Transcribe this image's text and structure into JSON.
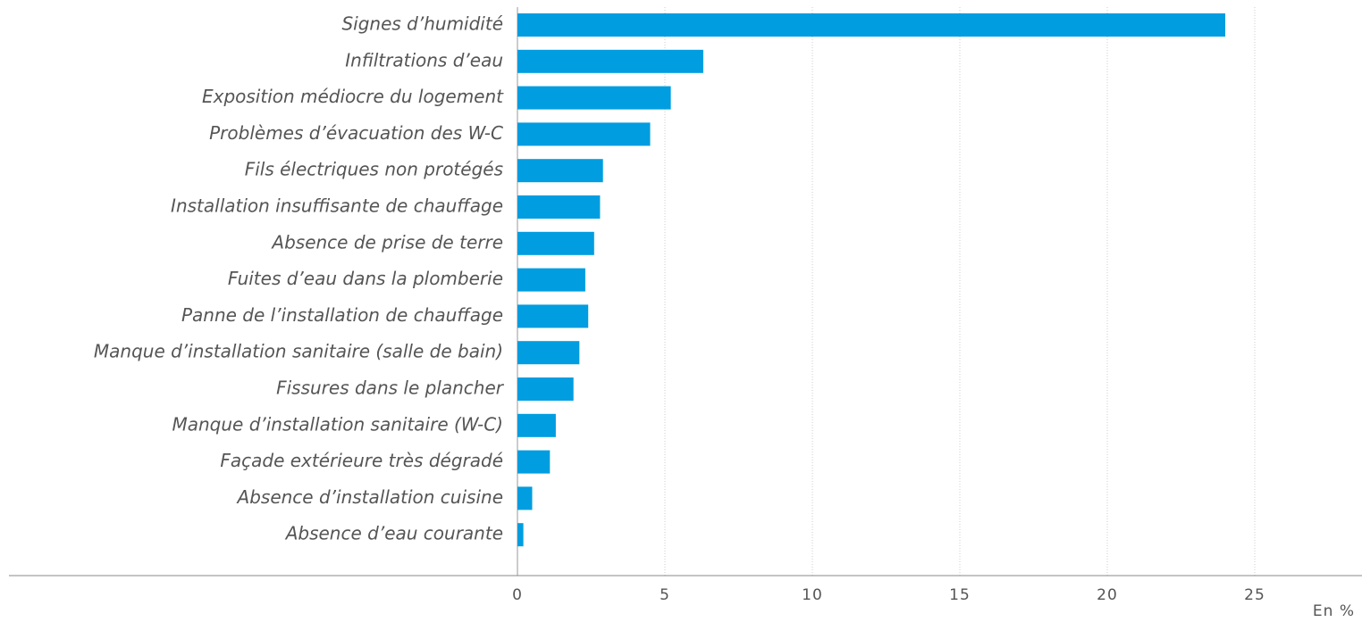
{
  "chart_data": {
    "type": "bar",
    "orientation": "horizontal",
    "x_label": "En %",
    "categories": [
      "Signes d’humidité",
      "Infiltrations d’eau",
      "Exposition médiocre du logement",
      "Problèmes d’évacuation des W-C",
      "Fils électriques non protégés",
      "Installation insuffisante de chauffage",
      "Absence de prise de terre",
      "Fuites d’eau dans la plomberie",
      "Panne de l’installation de chauffage",
      "Manque d’installation sanitaire (salle de bain)",
      "Fissures dans le plancher",
      "Manque d’installation sanitaire (W-C)",
      "Façade extérieure très dégradé",
      "Absence d’installation cuisine",
      "Absence d’eau courante"
    ],
    "values": [
      24,
      6.3,
      5.2,
      4.5,
      2.9,
      2.8,
      2.6,
      2.3,
      2.4,
      2.1,
      1.9,
      1.3,
      1.1,
      0.5,
      0.2
    ],
    "color": "#009de0",
    "xlim": [
      0,
      28
    ],
    "xticks": [
      0,
      5,
      10,
      15,
      20,
      25
    ],
    "grid": true
  }
}
